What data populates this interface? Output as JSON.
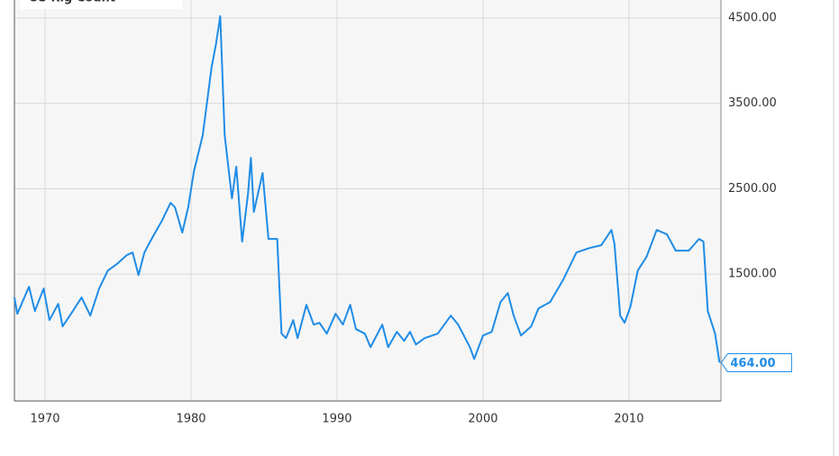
{
  "chart_data": {
    "type": "line",
    "title": "US Rig Count",
    "x": [
      1967.9,
      1968.1,
      1968.9,
      1969.3,
      1969.9,
      1970.3,
      1970.9,
      1971.2,
      1971.9,
      1972.5,
      1973.1,
      1973.7,
      1974.3,
      1974.9,
      1975.6,
      1976.0,
      1976.4,
      1976.8,
      1977.4,
      1978.0,
      1978.6,
      1978.9,
      1979.4,
      1979.8,
      1980.2,
      1980.8,
      1981.4,
      1981.7,
      1982.0,
      1982.3,
      1982.8,
      1983.1,
      1983.5,
      1983.9,
      1984.1,
      1984.3,
      1984.9,
      1985.3,
      1985.9,
      1986.2,
      1986.5,
      1987.0,
      1987.3,
      1987.9,
      1988.4,
      1988.8,
      1989.3,
      1989.9,
      1990.4,
      1990.9,
      1991.3,
      1991.9,
      1992.3,
      1993.1,
      1993.5,
      1994.1,
      1994.6,
      1995.0,
      1995.4,
      1996.0,
      1996.9,
      1997.8,
      1998.3,
      1999.1,
      1999.4,
      2000.0,
      2000.6,
      2001.2,
      2001.7,
      2002.1,
      2002.6,
      2003.3,
      2003.8,
      2004.6,
      2005.5,
      2006.4,
      2007.3,
      2008.1,
      2008.8,
      2009.0,
      2009.4,
      2009.7,
      2010.1,
      2010.6,
      2011.2,
      2011.9,
      2012.6,
      2013.2,
      2014.1,
      2014.8,
      2015.1,
      2015.4,
      2015.9,
      2016.2
    ],
    "series": [
      {
        "name": "US Rig Count",
        "color": "#1f8ce6",
        "values": [
          1227,
          1036,
          1353,
          1068,
          1332,
          962,
          1152,
          889,
          1068,
          1227,
          1015,
          1332,
          1543,
          1617,
          1723,
          1754,
          1490,
          1754,
          1945,
          2124,
          2335,
          2282,
          1987,
          2282,
          2705,
          3127,
          3919,
          4183,
          4521,
          3127,
          2388,
          2758,
          1881,
          2441,
          2863,
          2230,
          2684,
          1913,
          1913,
          804,
          751,
          962,
          751,
          1142,
          910,
          931,
          804,
          1036,
          910,
          1142,
          857,
          804,
          646,
          910,
          646,
          825,
          720,
          825,
          677,
          751,
          804,
          1015,
          910,
          646,
          508,
          782,
          825,
          1174,
          1279,
          1015,
          782,
          889,
          1100,
          1174,
          1438,
          1754,
          1807,
          1839,
          2018,
          1860,
          1015,
          931,
          1121,
          1543,
          1702,
          2018,
          1966,
          1776,
          1776,
          1913,
          1881,
          1068,
          804,
          464
        ],
        "value_labels": [
          null,
          null,
          null,
          null,
          null,
          null,
          null,
          null,
          null,
          null,
          null,
          null,
          null,
          null,
          null,
          null,
          null,
          null,
          null,
          null,
          null,
          null,
          null,
          null,
          null,
          null,
          null,
          null,
          null,
          null,
          null,
          null,
          null,
          null,
          null,
          null,
          null,
          null,
          null,
          null,
          null,
          null,
          null,
          null,
          null,
          null,
          null,
          null,
          null,
          null,
          null,
          null,
          null,
          null,
          null,
          null,
          null,
          null,
          null,
          null,
          null,
          null,
          null,
          null,
          null,
          null,
          null,
          null,
          null,
          null,
          null,
          null,
          null,
          null,
          null,
          null,
          null,
          null,
          null,
          null,
          null,
          null,
          null,
          null,
          null,
          null,
          null,
          null,
          null,
          null,
          null,
          null,
          null,
          "464.00"
        ]
      }
    ],
    "xlim": [
      1967.9,
      2016.3
    ],
    "xticks": [
      1970,
      1980,
      1990,
      2000,
      2010
    ],
    "ylim": [
      15,
      4710
    ],
    "yticks": [
      {
        "value": 1500,
        "label": "1500.00"
      },
      {
        "value": 2500,
        "label": "2500.00"
      },
      {
        "value": 3500,
        "label": "3500.00"
      },
      {
        "value": 4500,
        "label": "4500.00"
      }
    ],
    "grid": true
  }
}
